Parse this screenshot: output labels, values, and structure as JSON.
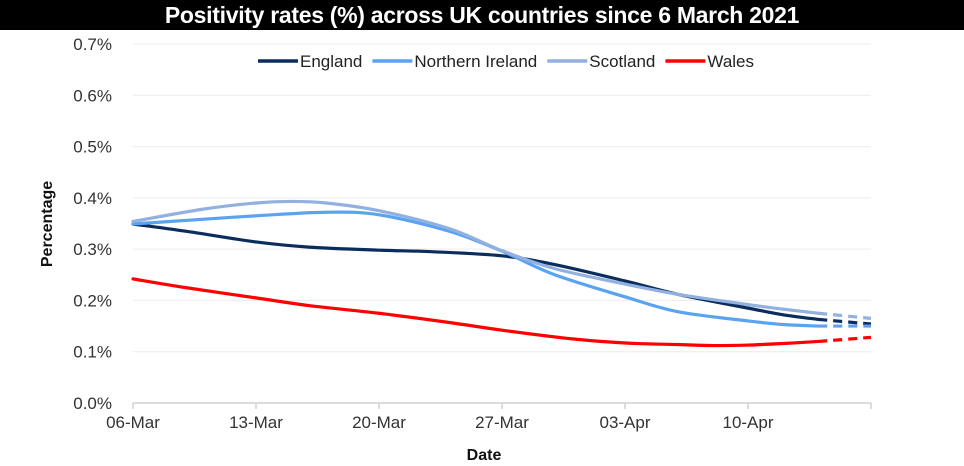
{
  "chart_data": {
    "type": "line",
    "title": "Positivity rates (%) across UK countries since 6 March 2021",
    "xlabel": "Date",
    "ylabel": "Percentage",
    "ylim": [
      0,
      0.7
    ],
    "yticks": [
      "0.0%",
      "0.1%",
      "0.2%",
      "0.3%",
      "0.4%",
      "0.5%",
      "0.6%",
      "0.7%"
    ],
    "xticks": [
      {
        "date": "2021-03-06",
        "label": "06-Mar"
      },
      {
        "date": "2021-03-13",
        "label": "13-Mar"
      },
      {
        "date": "2021-03-20",
        "label": "20-Mar"
      },
      {
        "date": "2021-03-27",
        "label": "27-Mar"
      },
      {
        "date": "2021-04-03",
        "label": "03-Apr"
      },
      {
        "date": "2021-04-10",
        "label": "10-Apr"
      }
    ],
    "xlim": [
      "2021-03-06",
      "2021-04-17"
    ],
    "grid": true,
    "legend_placement": "top",
    "dashed_from": "2021-04-14",
    "series": [
      {
        "name": "England",
        "color": "#0b2d5e",
        "points": [
          [
            "2021-03-06",
            0.349
          ],
          [
            "2021-03-09",
            0.335
          ],
          [
            "2021-03-13",
            0.314
          ],
          [
            "2021-03-16",
            0.304
          ],
          [
            "2021-03-20",
            0.298
          ],
          [
            "2021-03-23",
            0.295
          ],
          [
            "2021-03-27",
            0.287
          ],
          [
            "2021-03-30",
            0.27
          ],
          [
            "2021-04-03",
            0.238
          ],
          [
            "2021-04-06",
            0.212
          ],
          [
            "2021-04-10",
            0.185
          ],
          [
            "2021-04-12",
            0.172
          ],
          [
            "2021-04-14",
            0.163
          ],
          [
            "2021-04-17",
            0.154
          ]
        ]
      },
      {
        "name": "Northern Ireland",
        "color": "#5aa3f0",
        "points": [
          [
            "2021-03-06",
            0.349
          ],
          [
            "2021-03-09",
            0.356
          ],
          [
            "2021-03-13",
            0.365
          ],
          [
            "2021-03-17",
            0.372
          ],
          [
            "2021-03-20",
            0.367
          ],
          [
            "2021-03-24",
            0.335
          ],
          [
            "2021-03-27",
            0.296
          ],
          [
            "2021-03-30",
            0.25
          ],
          [
            "2021-04-03",
            0.207
          ],
          [
            "2021-04-06",
            0.178
          ],
          [
            "2021-04-10",
            0.16
          ],
          [
            "2021-04-12",
            0.153
          ],
          [
            "2021-04-14",
            0.15
          ],
          [
            "2021-04-17",
            0.15
          ]
        ]
      },
      {
        "name": "Scotland",
        "color": "#92b0e0",
        "points": [
          [
            "2021-03-06",
            0.354
          ],
          [
            "2021-03-10",
            0.378
          ],
          [
            "2021-03-13",
            0.39
          ],
          [
            "2021-03-15",
            0.393
          ],
          [
            "2021-03-17",
            0.39
          ],
          [
            "2021-03-20",
            0.375
          ],
          [
            "2021-03-24",
            0.34
          ],
          [
            "2021-03-27",
            0.297
          ],
          [
            "2021-03-30",
            0.262
          ],
          [
            "2021-04-03",
            0.232
          ],
          [
            "2021-04-06",
            0.212
          ],
          [
            "2021-04-10",
            0.192
          ],
          [
            "2021-04-12",
            0.183
          ],
          [
            "2021-04-14",
            0.175
          ],
          [
            "2021-04-17",
            0.165
          ]
        ]
      },
      {
        "name": "Wales",
        "color": "#ff0000",
        "points": [
          [
            "2021-03-06",
            0.242
          ],
          [
            "2021-03-09",
            0.225
          ],
          [
            "2021-03-13",
            0.205
          ],
          [
            "2021-03-16",
            0.19
          ],
          [
            "2021-03-20",
            0.175
          ],
          [
            "2021-03-24",
            0.157
          ],
          [
            "2021-03-27",
            0.142
          ],
          [
            "2021-03-31",
            0.125
          ],
          [
            "2021-04-03",
            0.117
          ],
          [
            "2021-04-06",
            0.114
          ],
          [
            "2021-04-08",
            0.112
          ],
          [
            "2021-04-10",
            0.113
          ],
          [
            "2021-04-12",
            0.116
          ],
          [
            "2021-04-14",
            0.12
          ],
          [
            "2021-04-17",
            0.128
          ]
        ]
      }
    ]
  }
}
